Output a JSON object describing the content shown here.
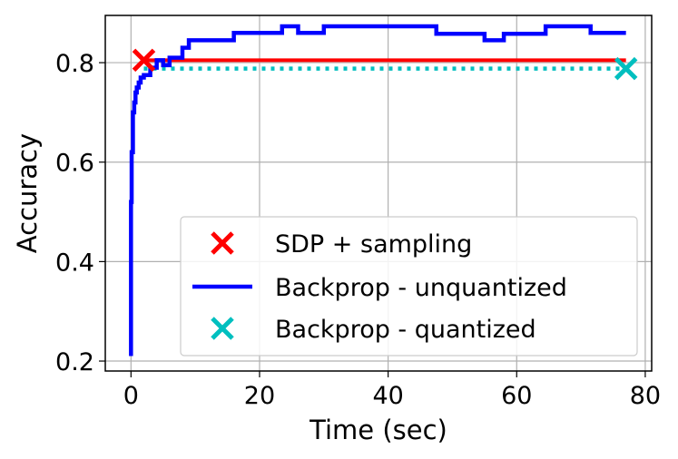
{
  "chart_data": {
    "type": "line",
    "xlabel": "Time (sec)",
    "ylabel": "Accuracy",
    "xlim": [
      -4,
      81
    ],
    "ylim": [
      0.18,
      0.895
    ],
    "xticks": [
      0,
      20,
      40,
      60,
      80
    ],
    "xtick_labels": [
      "0",
      "20",
      "40",
      "60",
      "80"
    ],
    "yticks": [
      0.2,
      0.4,
      0.6,
      0.8
    ],
    "ytick_labels": [
      "0.2",
      "0.4",
      "0.6",
      "0.8"
    ],
    "grid": true,
    "legend_position": "lower-right",
    "series": [
      {
        "name": "SDP + sampling",
        "style": "solid",
        "color": "#ff0000",
        "marker": "x",
        "marker_point": [
          2.0,
          0.805
        ],
        "x": [
          2.0,
          77.0
        ],
        "y": [
          0.805,
          0.805
        ]
      },
      {
        "name": "Backprop - unquantized",
        "style": "step",
        "color": "#0000ff",
        "x": [
          0.0,
          0.0,
          0.1,
          0.1,
          0.3,
          0.3,
          0.5,
          0.5,
          0.7,
          0.7,
          0.9,
          0.9,
          1.2,
          1.2,
          1.5,
          1.5,
          2.0,
          2.0,
          3.0,
          3.0,
          4.0,
          4.0,
          5.0,
          5.0,
          6.0,
          6.0,
          8.0,
          8.0,
          9.0,
          9.0,
          16.0,
          16.0,
          23.5,
          23.5,
          26.0,
          26.0,
          30.0,
          30.0,
          47.5,
          47.5,
          55.0,
          55.0,
          58.0,
          58.0,
          64.5,
          64.5,
          71.5,
          71.5,
          77.0
        ],
        "y": [
          0.21,
          0.52,
          0.52,
          0.62,
          0.62,
          0.7,
          0.7,
          0.72,
          0.72,
          0.74,
          0.74,
          0.75,
          0.75,
          0.76,
          0.76,
          0.77,
          0.77,
          0.775,
          0.775,
          0.79,
          0.79,
          0.805,
          0.805,
          0.795,
          0.795,
          0.81,
          0.81,
          0.83,
          0.83,
          0.845,
          0.845,
          0.86,
          0.86,
          0.873,
          0.873,
          0.86,
          0.86,
          0.873,
          0.873,
          0.858,
          0.858,
          0.845,
          0.845,
          0.858,
          0.858,
          0.873,
          0.873,
          0.86,
          0.86
        ]
      },
      {
        "name": "Backprop - quantized",
        "style": "dotted",
        "color": "#00bfbf",
        "marker": "x",
        "marker_point": [
          77.0,
          0.788
        ],
        "x": [
          2.0,
          77.0
        ],
        "y": [
          0.788,
          0.788
        ]
      }
    ]
  }
}
